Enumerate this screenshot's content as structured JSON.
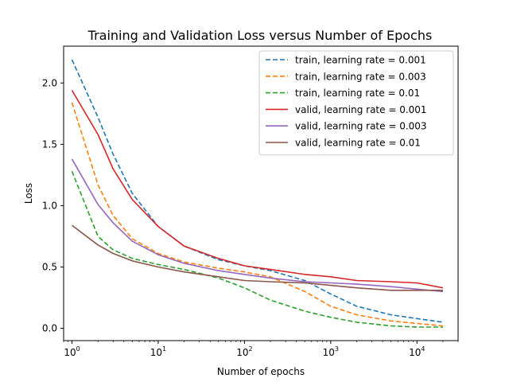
{
  "chart_data": {
    "type": "line",
    "title": "Training and Validation Loss versus Number of Epochs",
    "xlabel": "Number of epochs",
    "ylabel": "Loss",
    "xscale": "log",
    "xlim": [
      0.8,
      30000
    ],
    "ylim": [
      -0.1,
      2.3
    ],
    "x_ticks": [
      {
        "value": 1,
        "base": "10",
        "exp": "0"
      },
      {
        "value": 10,
        "base": "10",
        "exp": "1"
      },
      {
        "value": 100,
        "base": "10",
        "exp": "2"
      },
      {
        "value": 1000,
        "base": "10",
        "exp": "3"
      },
      {
        "value": 10000,
        "base": "10",
        "exp": "4"
      }
    ],
    "y_ticks": [
      {
        "value": 0.0,
        "label": "0.0"
      },
      {
        "value": 0.5,
        "label": "0.5"
      },
      {
        "value": 1.0,
        "label": "1.0"
      },
      {
        "value": 1.5,
        "label": "1.5"
      },
      {
        "value": 2.0,
        "label": "2.0"
      }
    ],
    "legend_position": "top-right",
    "grid": false,
    "series": [
      {
        "name": "train, learning rate = 0.001",
        "color": "#1f77b4",
        "style": "dashed",
        "x": [
          1,
          2,
          3,
          5,
          10,
          20,
          50,
          100,
          200,
          500,
          1000,
          2000,
          5000,
          10000,
          20000
        ],
        "y": [
          2.19,
          1.72,
          1.42,
          1.1,
          0.83,
          0.67,
          0.56,
          0.51,
          0.47,
          0.39,
          0.28,
          0.18,
          0.11,
          0.08,
          0.05
        ]
      },
      {
        "name": "train, learning rate = 0.003",
        "color": "#ff7f0e",
        "style": "dashed",
        "x": [
          1,
          2,
          3,
          5,
          10,
          20,
          50,
          100,
          200,
          500,
          1000,
          2000,
          5000,
          10000,
          20000
        ],
        "y": [
          1.84,
          1.17,
          0.92,
          0.73,
          0.61,
          0.54,
          0.49,
          0.46,
          0.42,
          0.3,
          0.18,
          0.11,
          0.06,
          0.04,
          0.02
        ]
      },
      {
        "name": "train, learning rate = 0.01",
        "color": "#2ca02c",
        "style": "dashed",
        "x": [
          1,
          2,
          3,
          5,
          10,
          20,
          50,
          100,
          200,
          500,
          1000,
          2000,
          5000,
          10000,
          20000
        ],
        "y": [
          1.28,
          0.75,
          0.64,
          0.57,
          0.52,
          0.48,
          0.41,
          0.33,
          0.23,
          0.14,
          0.09,
          0.05,
          0.02,
          0.01,
          0.01
        ]
      },
      {
        "name": "valid, learning rate = 0.001",
        "color": "#d62728",
        "style": "solid",
        "x": [
          1,
          2,
          3,
          5,
          10,
          20,
          50,
          100,
          200,
          500,
          1000,
          2000,
          5000,
          10000,
          20000
        ],
        "y": [
          1.94,
          1.58,
          1.3,
          1.05,
          0.83,
          0.67,
          0.57,
          0.51,
          0.48,
          0.44,
          0.42,
          0.39,
          0.38,
          0.37,
          0.33
        ]
      },
      {
        "name": "valid, learning rate = 0.003",
        "color": "#9467bd",
        "style": "solid",
        "x": [
          1,
          2,
          3,
          5,
          10,
          20,
          50,
          100,
          200,
          500,
          1000,
          2000,
          5000,
          10000,
          20000
        ],
        "y": [
          1.38,
          1.01,
          0.86,
          0.71,
          0.6,
          0.53,
          0.47,
          0.44,
          0.41,
          0.38,
          0.37,
          0.36,
          0.34,
          0.32,
          0.3
        ]
      },
      {
        "name": "valid, learning rate = 0.01",
        "color": "#8c564b",
        "style": "solid",
        "x": [
          1,
          2,
          3,
          5,
          10,
          20,
          50,
          100,
          200,
          500,
          1000,
          2000,
          5000,
          10000,
          20000
        ],
        "y": [
          0.84,
          0.68,
          0.61,
          0.55,
          0.5,
          0.46,
          0.42,
          0.39,
          0.38,
          0.37,
          0.35,
          0.33,
          0.31,
          0.31,
          0.31
        ]
      }
    ]
  }
}
